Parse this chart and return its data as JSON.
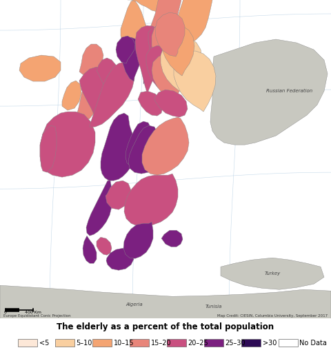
{
  "title": "The elderly as a percent of the total population",
  "legend_labels": [
    "<5",
    "5–10",
    "10–15",
    "15–20",
    "20–25",
    "25–30",
    ">30",
    "No Data"
  ],
  "legend_colors": [
    "#fde8d8",
    "#f9cfa0",
    "#f4a472",
    "#e8857a",
    "#c95080",
    "#7b2080",
    "#2d0a55",
    "#ffffff"
  ],
  "background_color": "#c8dff0",
  "land_gray": "#c8c8c0",
  "border_color": "#888888",
  "map_credit": "Map Credit: CIESIN, Columbia University, September 2017",
  "projection_label": "Europe Equidistant Conic Projection",
  "title_fontsize": 8.5,
  "legend_fontsize": 7.0,
  "fig_width": 4.8,
  "fig_height": 5.08,
  "dpi": 100
}
